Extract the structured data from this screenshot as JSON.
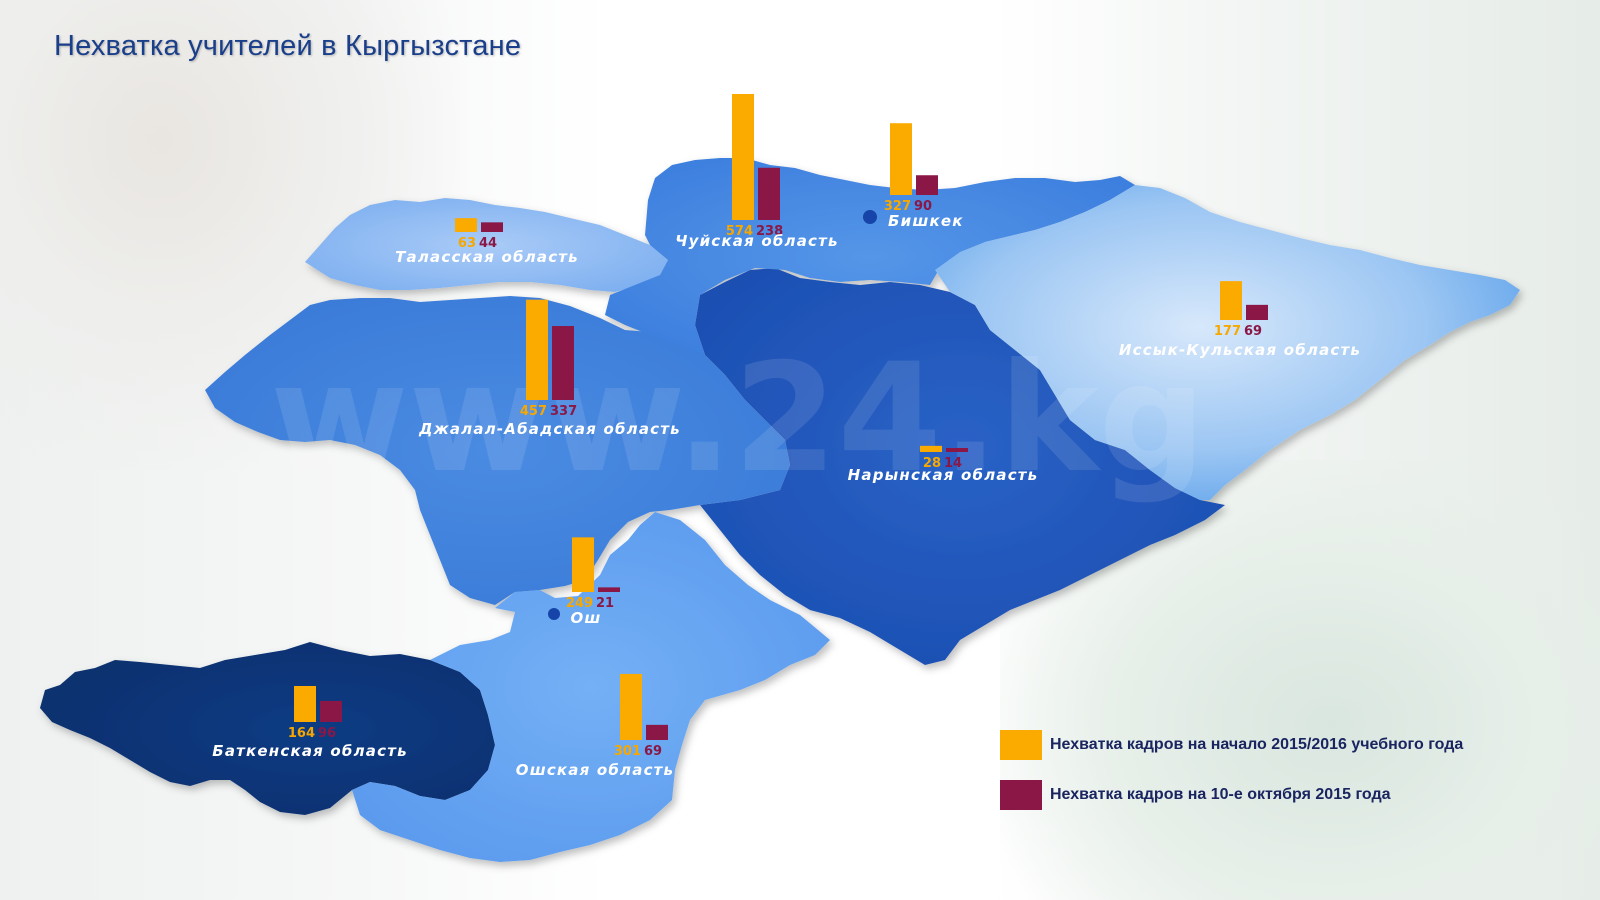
{
  "title": "Нехватка учителей в Кыргызстане",
  "watermark": "www.24.kg",
  "colors": {
    "start_of_year": "#fbaa00",
    "october_10": "#8a1745",
    "title": "#1a3f8a"
  },
  "legend": {
    "start_of_year": "Нехватка кадров на начало 2015/2016 учебного года",
    "october_10": "Нехватка кадров на 10-е октября 2015 года"
  },
  "regions": [
    {
      "key": "talas",
      "name": "Таласская область",
      "start_of_year": 63,
      "october_10": 44
    },
    {
      "key": "chui",
      "name": "Чуйская область",
      "start_of_year": 574,
      "october_10": 238
    },
    {
      "key": "bishkek",
      "name": "Бишкек",
      "start_of_year": 327,
      "october_10": 90
    },
    {
      "key": "issyk_kul",
      "name": "Иссык-Кульская область",
      "start_of_year": 177,
      "october_10": 69
    },
    {
      "key": "jalal_abad",
      "name": "Джалал-Абадская область",
      "start_of_year": 457,
      "october_10": 337
    },
    {
      "key": "naryn",
      "name": "Нарынская область",
      "start_of_year": 28,
      "october_10": 14
    },
    {
      "key": "osh_city",
      "name": "Ош",
      "start_of_year": 249,
      "october_10": 21
    },
    {
      "key": "batken",
      "name": "Баткенская область",
      "start_of_year": 164,
      "october_10": 96
    },
    {
      "key": "osh_region",
      "name": "Ошская область",
      "start_of_year": 301,
      "october_10": 69
    }
  ]
}
